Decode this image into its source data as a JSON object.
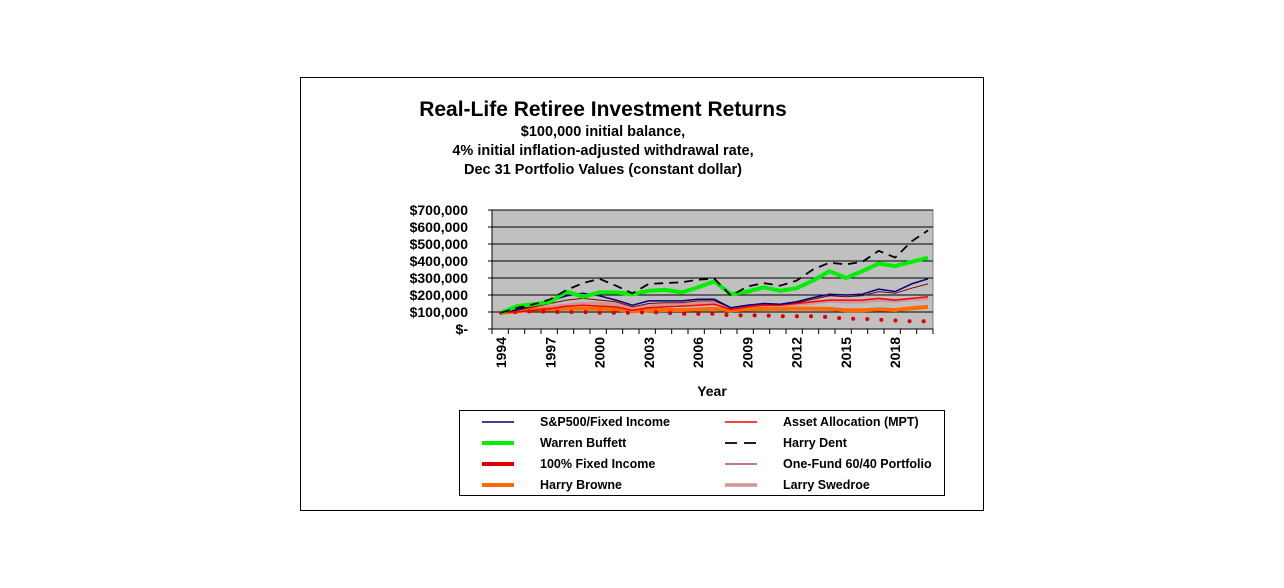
{
  "chart_data": {
    "type": "line",
    "title": "Real-Life Retiree Investment Returns",
    "subtitle": [
      "$100,000 initial balance,",
      "4% initial inflation-adjusted withdrawal rate,",
      "Dec 31 Portfolio Values (constant dollar)"
    ],
    "xlabel": "Year",
    "ylabel": "",
    "ylim": [
      0,
      700000
    ],
    "yticks": [
      "$-",
      "$100,000",
      "$200,000",
      "$300,000",
      "$400,000",
      "$500,000",
      "$600,000",
      "$700,000"
    ],
    "xtick_labels": [
      "1994",
      "1997",
      "2000",
      "2003",
      "2006",
      "2009",
      "2012",
      "2015",
      "2018"
    ],
    "grid": true,
    "legend_position": "bottom",
    "x": [
      1994,
      1995,
      1996,
      1997,
      1998,
      1999,
      2000,
      2001,
      2002,
      2003,
      2004,
      2005,
      2006,
      2007,
      2008,
      2009,
      2010,
      2011,
      2012,
      2013,
      2014,
      2015,
      2016,
      2017,
      2018,
      2019,
      2020
    ],
    "series": [
      {
        "name": "S&P500/Fixed Income",
        "color": "#000080",
        "width": 1.5,
        "dash": "",
        "values": [
          96,
          115,
          140,
          165,
          195,
          210,
          195,
          170,
          140,
          165,
          165,
          165,
          175,
          175,
          125,
          140,
          150,
          145,
          160,
          185,
          205,
          200,
          205,
          235,
          220,
          265,
          295
        ]
      },
      {
        "name": "Asset Allocation (MPT)",
        "color": "#ff0000",
        "width": 1.5,
        "dash": "",
        "values": [
          96,
          100,
          110,
          120,
          135,
          140,
          135,
          130,
          110,
          125,
          130,
          135,
          140,
          145,
          115,
          130,
          140,
          140,
          150,
          160,
          170,
          170,
          170,
          180,
          170,
          180,
          190
        ]
      },
      {
        "name": "Warren Buffett",
        "color": "#00ee00",
        "width": 4,
        "dash": "",
        "values": [
          96,
          135,
          145,
          160,
          220,
          190,
          215,
          215,
          205,
          225,
          230,
          215,
          245,
          280,
          205,
          220,
          245,
          225,
          240,
          285,
          340,
          300,
          340,
          385,
          370,
          395,
          420
        ]
      },
      {
        "name": "Harry Dent",
        "color": "#000000",
        "width": 1.8,
        "dash": "9,6",
        "values": [
          96,
          125,
          145,
          175,
          230,
          270,
          295,
          255,
          210,
          265,
          270,
          275,
          290,
          295,
          195,
          250,
          270,
          255,
          285,
          350,
          390,
          380,
          395,
          460,
          420,
          515,
          580
        ]
      },
      {
        "name": "100% Fixed Income",
        "color": "#dd0000",
        "width": 4,
        "dash": "0.1,14",
        "values": [
          96,
          100,
          105,
          100,
          100,
          100,
          95,
          95,
          95,
          100,
          95,
          90,
          90,
          90,
          80,
          80,
          80,
          75,
          75,
          75,
          70,
          60,
          60,
          55,
          50,
          45,
          45
        ]
      },
      {
        "name": "One-Fund 60/40 Portfolio",
        "color": "#800000",
        "width": 1,
        "dash": "",
        "values": [
          96,
          110,
          130,
          150,
          170,
          180,
          170,
          160,
          130,
          150,
          155,
          155,
          165,
          165,
          125,
          140,
          150,
          145,
          155,
          175,
          195,
          190,
          195,
          220,
          210,
          240,
          265
        ]
      },
      {
        "name": "Harry Browne",
        "color": "#ff6a00",
        "width": 4,
        "dash": "",
        "values": [
          96,
          105,
          115,
          115,
          120,
          120,
          118,
          115,
          105,
          110,
          112,
          112,
          115,
          118,
          110,
          115,
          118,
          118,
          120,
          120,
          118,
          110,
          110,
          115,
          112,
          122,
          130
        ]
      },
      {
        "name": "Larry Swedroe",
        "color": "#d49494",
        "width": 3.5,
        "dash": "",
        "values": [
          96,
          108,
          120,
          130,
          140,
          150,
          150,
          145,
          120,
          135,
          140,
          140,
          150,
          150,
          120,
          130,
          140,
          140,
          145,
          155,
          165,
          160,
          160,
          170,
          165,
          175,
          180
        ]
      }
    ],
    "value_unit": "thousands USD"
  },
  "legend": {
    "items": [
      {
        "label": "S&P500/Fixed Income"
      },
      {
        "label": "Asset Allocation (MPT)"
      },
      {
        "label": "Warren Buffett"
      },
      {
        "label": "Harry Dent"
      },
      {
        "label": "100% Fixed Income"
      },
      {
        "label": "One-Fund 60/40 Portfolio"
      },
      {
        "label": "Harry Browne"
      },
      {
        "label": "Larry Swedroe"
      }
    ]
  },
  "colors": {
    "plot_bg": "#c0c0c0",
    "gridline": "#000000",
    "frame": "#000000"
  }
}
